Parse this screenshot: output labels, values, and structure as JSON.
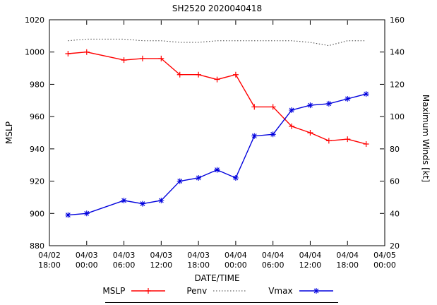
{
  "chart_data": {
    "type": "line",
    "title": "SH2520 2020040418",
    "xlabel": "DATE/TIME",
    "ylabel_left": "MSLP",
    "ylabel_right": "Maximum Winds [kt]",
    "ylim_left": [
      880,
      1020
    ],
    "ylim_right": [
      20,
      160
    ],
    "xlim_hours": [
      0,
      54
    ],
    "grid": false,
    "legend_position": "bottom-center",
    "x_tick_hours": [
      0,
      6,
      12,
      18,
      24,
      30,
      36,
      42,
      48,
      54
    ],
    "x_ticks": [
      {
        "date": "04/02",
        "time": "18:00"
      },
      {
        "date": "04/03",
        "time": "00:00"
      },
      {
        "date": "04/03",
        "time": "06:00"
      },
      {
        "date": "04/03",
        "time": "12:00"
      },
      {
        "date": "04/03",
        "time": "18:00"
      },
      {
        "date": "04/04",
        "time": "00:00"
      },
      {
        "date": "04/04",
        "time": "06:00"
      },
      {
        "date": "04/04",
        "time": "12:00"
      },
      {
        "date": "04/04",
        "time": "18:00"
      },
      {
        "date": "04/05",
        "time": "00:00"
      }
    ],
    "y_ticks_left": [
      880,
      900,
      920,
      940,
      960,
      980,
      1000,
      1020
    ],
    "y_ticks_right": [
      20,
      40,
      60,
      80,
      100,
      120,
      140,
      160
    ],
    "x_hours": [
      3,
      6,
      12,
      15,
      18,
      21,
      24,
      27,
      30,
      33,
      36,
      39,
      42,
      45,
      48,
      51
    ],
    "series": [
      {
        "name": "MSLP",
        "axis": "left",
        "color": "#ff0000",
        "line": "solid",
        "marker": "plus",
        "values": [
          999,
          1000,
          995,
          996,
          996,
          986,
          986,
          983,
          986,
          966,
          966,
          954,
          950,
          945,
          946,
          943
        ]
      },
      {
        "name": "Penv",
        "axis": "left",
        "color": "#404040",
        "line": "dotted",
        "marker": "none",
        "values": [
          1007,
          1008,
          1008,
          1007,
          1007,
          1006,
          1006,
          1007,
          1007,
          1007,
          1007,
          1007,
          1006,
          1004,
          1007,
          1007
        ]
      },
      {
        "name": "Vmax",
        "axis": "right",
        "color": "#0000dd",
        "line": "solid",
        "marker": "asterisk",
        "values": [
          39,
          40,
          48,
          46,
          48,
          60,
          62,
          67,
          62,
          88,
          89,
          104,
          107,
          108,
          111,
          114
        ]
      }
    ]
  }
}
